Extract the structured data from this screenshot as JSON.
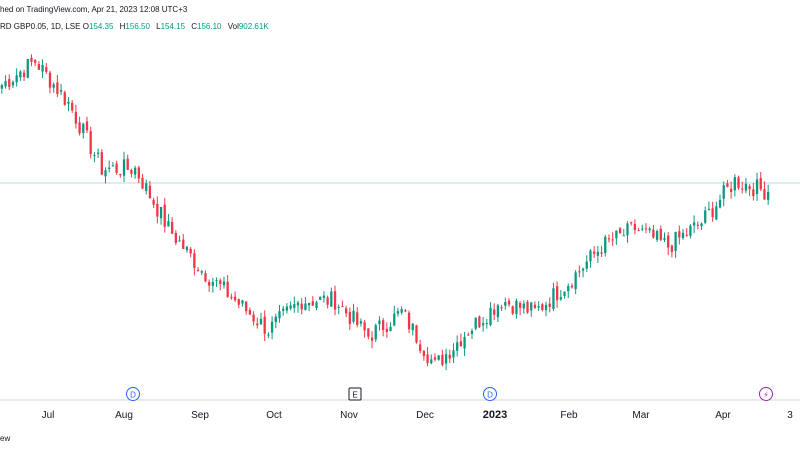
{
  "header": {
    "published": "hed on TradingView.com, Apr 21, 2023 12:08 UTC+3",
    "symbol": "RD GBP0.05, 1D, LSE",
    "ohlc": [
      {
        "k": "O",
        "v": "154.35"
      },
      {
        "k": "H",
        "v": "156.50"
      },
      {
        "k": "L",
        "v": "154.15"
      },
      {
        "k": "C",
        "v": "156.10"
      },
      {
        "k": "Vol",
        "v": "902.61K"
      }
    ]
  },
  "footer": {
    "brand": "ew"
  },
  "markers": [
    {
      "label": "D",
      "month_index": 1,
      "color": "#2962ff"
    },
    {
      "label": "E",
      "month_index": 4,
      "color": "#131722"
    },
    {
      "label": "D",
      "month_index": 6,
      "color": "#2962ff"
    },
    {
      "label": "⚡",
      "month_index": 9,
      "color": "#9c27b0"
    }
  ],
  "colors": {
    "up": "#089981",
    "down": "#f23645",
    "price_line": "#b2dfdb"
  },
  "chart_data": {
    "type": "candlestick",
    "x_axis_labels": [
      "Jul",
      "Aug",
      "Sep",
      "Oct",
      "Nov",
      "Dec",
      "2023",
      "Feb",
      "Mar",
      "Apr",
      "3"
    ],
    "current_price": 156.1,
    "anchor_points": [
      {
        "label": "late Jun 2022",
        "close": 174
      },
      {
        "label": "mid Jul 2022",
        "close": 178
      },
      {
        "label": "early Aug 2022",
        "close": 171
      },
      {
        "label": "mid Aug 2022",
        "close": 160
      },
      {
        "label": "late Aug 2022",
        "close": 160
      },
      {
        "label": "mid Sep 2022",
        "close": 150
      },
      {
        "label": "late Sep 2022",
        "close": 143
      },
      {
        "label": "early Oct 2022",
        "close": 138
      },
      {
        "label": "mid Oct 2022",
        "close": 133
      },
      {
        "label": "late Oct 2022",
        "close": 138
      },
      {
        "label": "early Nov 2022",
        "close": 138
      },
      {
        "label": "mid Nov 2022",
        "close": 132
      },
      {
        "label": "late Nov 2022",
        "close": 136
      },
      {
        "label": "mid Dec 2022",
        "close": 127
      },
      {
        "label": "early Jan 2023",
        "close": 133
      },
      {
        "label": "mid Jan 2023",
        "close": 138
      },
      {
        "label": "early Feb 2023",
        "close": 136
      },
      {
        "label": "mid Feb 2023",
        "close": 141
      },
      {
        "label": "early Mar 2023",
        "close": 147
      },
      {
        "label": "mid Mar 2023",
        "close": 150
      },
      {
        "label": "late Mar 2023",
        "close": 147
      },
      {
        "label": "early Apr 2023",
        "close": 151
      },
      {
        "label": "mid Apr 2023",
        "close": 158
      },
      {
        "label": "Apr 20 2023",
        "close": 156.1
      }
    ]
  }
}
